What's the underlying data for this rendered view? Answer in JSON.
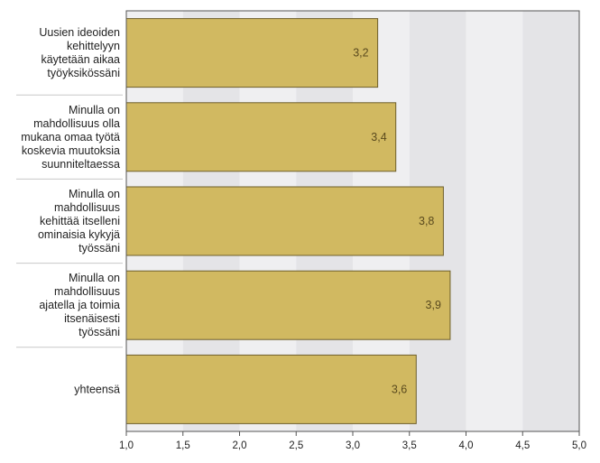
{
  "chart_data": {
    "type": "bar",
    "orientation": "horizontal",
    "categories": [
      [
        "Uusien ideoiden",
        "kehittelyyn",
        "käytetään aikaa",
        "työyksikössäni"
      ],
      [
        "Minulla on",
        "mahdollisuus olla",
        "mukana omaa työtä",
        "koskevia muutoksia",
        "suunniteltaessa"
      ],
      [
        "Minulla on",
        "mahdollisuus",
        "kehittää itselleni",
        "ominaisia kykyjä",
        "työssäni"
      ],
      [
        "Minulla on",
        "mahdollisuus",
        "ajatella ja toimia",
        "itsenäisesti",
        "työssäni"
      ],
      [
        "yhteensä"
      ]
    ],
    "values": [
      3.22,
      3.38,
      3.8,
      3.86,
      3.56
    ],
    "value_labels": [
      "3,2",
      "3,4",
      "3,8",
      "3,9",
      "3,6"
    ],
    "xlim": [
      1.0,
      5.0
    ],
    "xticks": [
      1.0,
      1.5,
      2.0,
      2.5,
      3.0,
      3.5,
      4.0,
      4.5,
      5.0
    ],
    "xtick_labels": [
      "1,0",
      "1,5",
      "2,0",
      "2,5",
      "3,0",
      "3,5",
      "4,0",
      "4,5",
      "5,0"
    ],
    "grid": "alternating vertical bands",
    "colors": {
      "bar_fill": "#d1b961",
      "bar_stroke": "#6e5f2c",
      "band_light": "#efeff1",
      "band_dark": "#e4e4e7",
      "axis": "#555555",
      "separator": "#c8c8c8"
    }
  }
}
